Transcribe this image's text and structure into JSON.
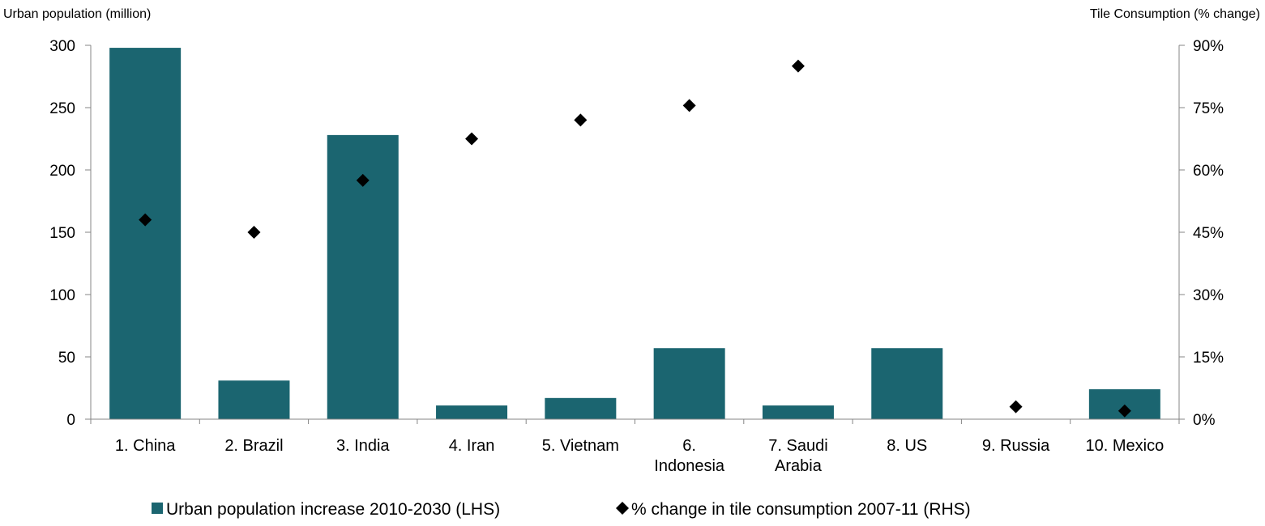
{
  "chart_data": {
    "type": "bar",
    "title": "",
    "left_axis_title": "Urban population (million)",
    "right_axis_title": "Tile Consumption (% change)",
    "categories": [
      [
        "1. China"
      ],
      [
        "2. Brazil"
      ],
      [
        "3. India"
      ],
      [
        "4. Iran"
      ],
      [
        "5. Vietnam"
      ],
      [
        "6.",
        "Indonesia"
      ],
      [
        "7. Saudi",
        "Arabia"
      ],
      [
        "8. US"
      ],
      [
        "9. Russia"
      ],
      [
        "10. Mexico"
      ]
    ],
    "series": [
      {
        "name": "Urban population increase 2010-2030 (LHS)",
        "type": "bar",
        "axis": "left",
        "color": "#1b6570",
        "values": [
          298,
          31,
          228,
          11,
          17,
          57,
          11,
          57,
          0,
          24
        ]
      },
      {
        "name": "% change in tile consumption 2007-11 (RHS)",
        "type": "scatter",
        "marker": "diamond",
        "axis": "right",
        "color": "#000000",
        "values": [
          48,
          45,
          57.5,
          67.5,
          72,
          75.5,
          85,
          null,
          3,
          2
        ]
      }
    ],
    "left_axis": {
      "ylim": [
        0,
        300
      ],
      "ticks": [
        "0",
        "50",
        "100",
        "150",
        "200",
        "250",
        "300"
      ],
      "tick_values": [
        0,
        50,
        100,
        150,
        200,
        250,
        300
      ]
    },
    "right_axis": {
      "ylim": [
        0,
        90
      ],
      "ticks": [
        "0%",
        "15%",
        "30%",
        "45%",
        "60%",
        "75%",
        "90%"
      ],
      "tick_values": [
        0,
        15,
        30,
        45,
        60,
        75,
        90
      ]
    },
    "grid": false,
    "legend": "bottom"
  }
}
